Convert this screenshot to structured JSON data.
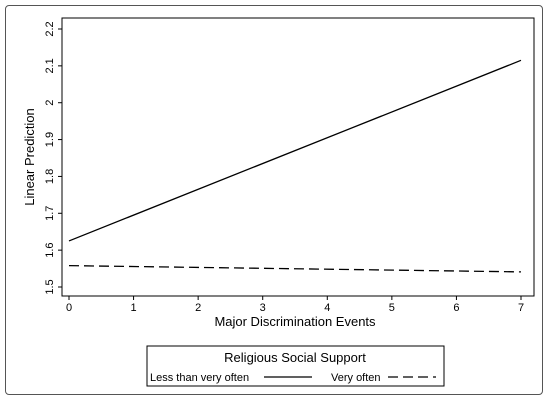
{
  "chart_data": {
    "type": "line",
    "xlabel": "Major Discrimination Events",
    "ylabel": "Linear Prediction",
    "xlim": [
      0,
      7
    ],
    "ylim": [
      1.5,
      2.2
    ],
    "x_ticks": [
      "0",
      "1",
      "2",
      "3",
      "4",
      "5",
      "6",
      "7"
    ],
    "y_ticks": [
      "1.5",
      "1.6",
      "1.7",
      "1.8",
      "1.9",
      "2",
      "2.1",
      "2.2"
    ],
    "x": [
      0,
      7
    ],
    "series": [
      {
        "name": "Less than very often",
        "values": [
          1.625,
          2.115
        ],
        "style": "solid"
      },
      {
        "name": "Very often",
        "values": [
          1.558,
          1.541
        ],
        "style": "dashed"
      }
    ],
    "legend": {
      "title": "Religious Social Support",
      "placement": "bottom"
    },
    "grid": false,
    "colors": {
      "line": "#000000",
      "frame": "#555555"
    }
  }
}
